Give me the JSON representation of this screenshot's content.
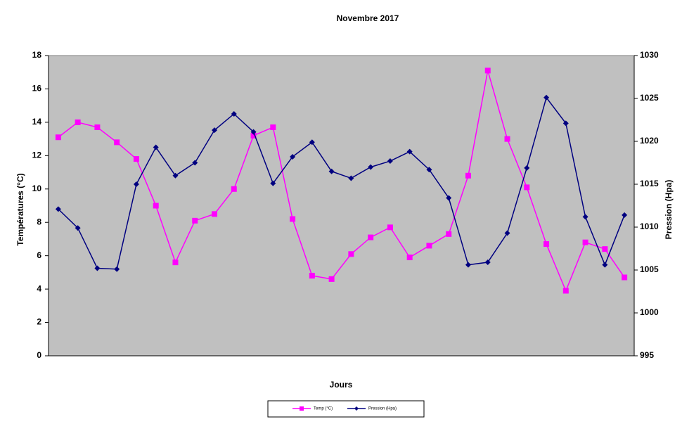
{
  "chart_data": {
    "type": "line",
    "title": "Novembre 2017",
    "x_label": "Jours",
    "y_label": "Températures (°C)",
    "y2_label": "Pression (Hpa)",
    "categories": [
      null,
      null,
      null,
      null,
      null,
      null,
      null,
      null,
      null,
      null,
      null,
      null,
      null,
      null,
      null,
      null,
      null,
      null,
      null,
      null,
      null,
      null,
      null,
      null,
      null,
      null,
      null,
      null,
      null,
      null
    ],
    "ylim": [
      0,
      18
    ],
    "yticks": [
      0,
      2,
      4,
      6,
      8,
      10,
      12,
      14,
      16,
      18
    ],
    "y2lim": [
      995,
      1030
    ],
    "y2ticks": [
      995,
      1000,
      1005,
      1010,
      1015,
      1020,
      1025,
      1030
    ],
    "plot_background": "#c0c0c0",
    "legend": "bottom",
    "series": [
      {
        "name": "Temp (°C)",
        "color": "#ff00ff",
        "marker": "square",
        "values": [
          13.1,
          14.0,
          13.7,
          12.8,
          11.8,
          9.0,
          5.6,
          8.1,
          8.5,
          10.0,
          13.2,
          13.7,
          8.2,
          4.8,
          4.6,
          6.1,
          7.1,
          7.7,
          5.9,
          6.6,
          7.3,
          10.8,
          17.1,
          13.0,
          10.1,
          6.7,
          3.9,
          6.8,
          6.4,
          4.7
        ]
      },
      {
        "name": "Pression (Hpa)",
        "color": "#000080",
        "marker": "diamond",
        "axis": "y2",
        "values": [
          1012.1,
          1009.9,
          1005.2,
          1005.1,
          1015.0,
          1019.3,
          1016.0,
          1017.5,
          1021.3,
          1023.2,
          1021.1,
          1015.1,
          1018.2,
          1019.9,
          1016.5,
          1015.7,
          1017.0,
          1017.7,
          1018.8,
          1016.7,
          1013.4,
          1005.6,
          1005.9,
          1009.3,
          1016.9,
          1025.1,
          1022.1,
          1011.2,
          1005.6,
          1011.4
        ]
      }
    ]
  }
}
